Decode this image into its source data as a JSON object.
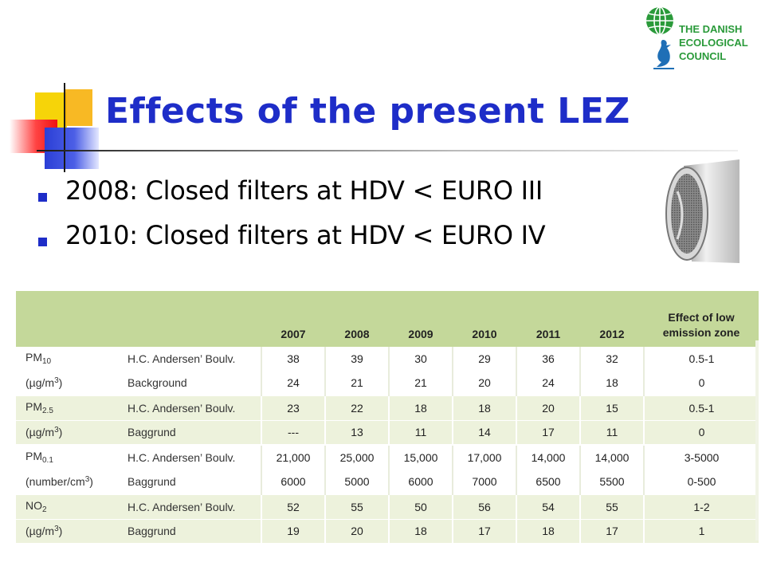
{
  "slide": {
    "title": "Effects of the present LEZ",
    "bullets": [
      "2008: Closed filters at HDV < EURO III",
      "2010: Closed filters at HDV < EURO IV"
    ]
  },
  "logo": {
    "lines": [
      "THE DANISH",
      "ECOLOGICAL",
      "COUNCIL"
    ],
    "color": "#2a9a3a"
  },
  "colors": {
    "title": "#1e2dc8",
    "header_bg": "#c4d89a",
    "shaded_row": "#edf2dc"
  },
  "table": {
    "columns": [
      "2007",
      "2008",
      "2009",
      "2010",
      "2011",
      "2012"
    ],
    "effect_header": [
      "Effect of low",
      "emission zone"
    ],
    "groups": [
      {
        "pollutant": "PM",
        "pollutant_sub": "10",
        "unit_pre": "(µg/m",
        "unit_sup": "3",
        "unit_post": ")",
        "shaded": false,
        "rows": [
          {
            "location": "H.C. Andersen’ Boulv.",
            "values": [
              "38",
              "39",
              "30",
              "29",
              "36",
              "32"
            ],
            "effect": "0.5-1"
          },
          {
            "location": "Background",
            "values": [
              "24",
              "21",
              "21",
              "20",
              "24",
              "18"
            ],
            "effect": "0"
          }
        ]
      },
      {
        "pollutant": "PM",
        "pollutant_sub": "2.5",
        "unit_pre": "(µg/m",
        "unit_sup": "3",
        "unit_post": ")",
        "shaded": true,
        "rows": [
          {
            "location": "H.C. Andersen’ Boulv.",
            "values": [
              "23",
              "22",
              "18",
              "18",
              "20",
              "15"
            ],
            "effect": "0.5-1"
          },
          {
            "location": "Baggrund",
            "values": [
              "---",
              "13",
              "11",
              "14",
              "17",
              "11"
            ],
            "effect": "0"
          }
        ]
      },
      {
        "pollutant": "PM",
        "pollutant_sub": "0.1",
        "unit_pre": "(number/cm",
        "unit_sup": "3",
        "unit_post": ")",
        "shaded": false,
        "rows": [
          {
            "location": "H.C. Andersen’ Boulv.",
            "values": [
              "21,000",
              "25,000",
              "15,000",
              "17,000",
              "14,000",
              "14,000"
            ],
            "effect": "3-5000"
          },
          {
            "location": "Baggrund",
            "values": [
              "6000",
              "5000",
              "6000",
              "7000",
              "6500",
              "5500"
            ],
            "effect": "0-500"
          }
        ]
      },
      {
        "pollutant": "NO",
        "pollutant_sub": "2",
        "unit_pre": "(µg/m",
        "unit_sup": "3",
        "unit_post": ")",
        "shaded": true,
        "rows": [
          {
            "location": "H.C. Andersen’ Boulv.",
            "values": [
              "52",
              "55",
              "50",
              "56",
              "54",
              "55"
            ],
            "effect": "1-2"
          },
          {
            "location": "Baggrund",
            "values": [
              "19",
              "20",
              "18",
              "17",
              "18",
              "17"
            ],
            "effect": "1"
          }
        ]
      }
    ]
  }
}
